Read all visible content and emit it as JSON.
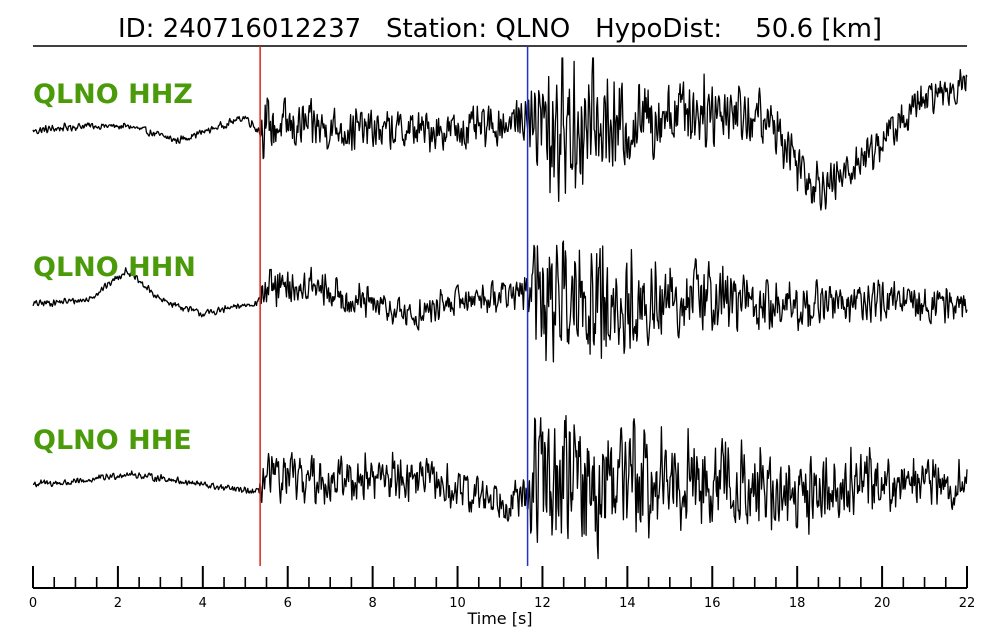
{
  "title": "ID: 240716012237   Station: QLNO   HypoDist:    50.6 [km]",
  "colors": {
    "label": "#4a9a0a",
    "trace": "#000000",
    "p_pick": "#e0201b",
    "s_pick": "#1f2fd6"
  },
  "chart_data": {
    "type": "line",
    "xlabel": "Time [s]",
    "xlim": [
      0,
      22
    ],
    "x_major_ticks": [
      0,
      2,
      4,
      6,
      8,
      10,
      12,
      14,
      16,
      18,
      20,
      22
    ],
    "tick_labels": [
      "0",
      "2",
      "4",
      "6",
      "8",
      "10",
      "12",
      "14",
      "16",
      "18",
      "20",
      "22"
    ],
    "minor_tick_step": 0.5,
    "picks": [
      {
        "phase": "P",
        "time": 5.35
      },
      {
        "phase": "S",
        "time": 11.65
      }
    ],
    "channels": [
      {
        "name": "QLNO HHZ",
        "envelope": [
          [
            0.0,
            0,
            0.06
          ],
          [
            1.2,
            0.06,
            0.05
          ],
          [
            2.3,
            0.05,
            0.05
          ],
          [
            3.4,
            -0.11,
            0.05
          ],
          [
            4.2,
            0.02,
            0.05
          ],
          [
            5.0,
            0.16,
            0.05
          ],
          [
            5.35,
            0.0,
            0.1
          ],
          [
            5.4,
            0.05,
            0.38
          ],
          [
            6.5,
            0.05,
            0.32
          ],
          [
            8.5,
            0.0,
            0.28
          ],
          [
            10.5,
            0.02,
            0.28
          ],
          [
            11.65,
            0.15,
            0.28
          ],
          [
            11.8,
            0.05,
            0.75
          ],
          [
            12.5,
            0.05,
            1.0
          ],
          [
            13.2,
            0.05,
            0.9
          ],
          [
            14.0,
            0.05,
            0.55
          ],
          [
            15.0,
            0.25,
            0.55
          ],
          [
            16.5,
            0.25,
            0.45
          ],
          [
            17.5,
            0.05,
            0.4
          ],
          [
            18.3,
            -0.55,
            0.35
          ],
          [
            18.8,
            -0.62,
            0.3
          ],
          [
            20.0,
            -0.1,
            0.28
          ],
          [
            21.0,
            0.35,
            0.25
          ],
          [
            22.0,
            0.55,
            0.2
          ]
        ]
      },
      {
        "name": "QLNO HHN",
        "envelope": [
          [
            0.0,
            0,
            0.05
          ],
          [
            1.3,
            0.05,
            0.05
          ],
          [
            2.2,
            0.4,
            0.05
          ],
          [
            3.0,
            0.05,
            0.05
          ],
          [
            4.0,
            -0.12,
            0.05
          ],
          [
            5.3,
            0.02,
            0.05
          ],
          [
            5.4,
            0.15,
            0.28
          ],
          [
            6.5,
            0.2,
            0.3
          ],
          [
            7.5,
            0.05,
            0.25
          ],
          [
            9.0,
            -0.15,
            0.22
          ],
          [
            10.0,
            0.05,
            0.22
          ],
          [
            11.65,
            0.15,
            0.22
          ],
          [
            11.8,
            0.05,
            0.9
          ],
          [
            12.4,
            0.0,
            1.0
          ],
          [
            13.5,
            0.0,
            0.85
          ],
          [
            14.5,
            0.0,
            0.6
          ],
          [
            16.0,
            0.1,
            0.5
          ],
          [
            17.5,
            -0.05,
            0.4
          ],
          [
            19.0,
            0.02,
            0.3
          ],
          [
            22.0,
            0.0,
            0.25
          ]
        ]
      },
      {
        "name": "QLNO HHE",
        "envelope": [
          [
            0.0,
            0,
            0.06
          ],
          [
            1.0,
            0.02,
            0.05
          ],
          [
            2.2,
            0.12,
            0.05
          ],
          [
            3.3,
            0.05,
            0.05
          ],
          [
            4.5,
            -0.05,
            0.05
          ],
          [
            5.3,
            -0.1,
            0.05
          ],
          [
            5.4,
            0.05,
            0.35
          ],
          [
            7.0,
            0.05,
            0.35
          ],
          [
            9.0,
            0.1,
            0.32
          ],
          [
            10.0,
            -0.1,
            0.3
          ],
          [
            11.65,
            -0.2,
            0.3
          ],
          [
            11.8,
            0.05,
            0.95
          ],
          [
            13.0,
            0.0,
            1.0
          ],
          [
            14.5,
            0.05,
            0.75
          ],
          [
            16.5,
            0.0,
            0.6
          ],
          [
            18.0,
            -0.12,
            0.55
          ],
          [
            19.5,
            0.05,
            0.45
          ],
          [
            22.0,
            0.0,
            0.3
          ]
        ]
      }
    ]
  }
}
